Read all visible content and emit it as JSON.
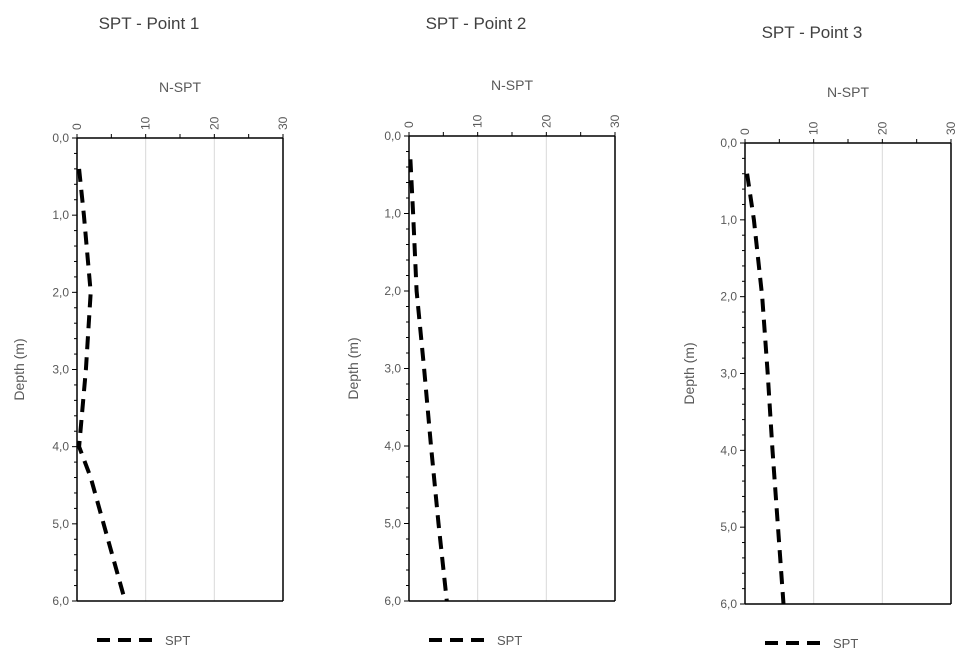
{
  "chart_data": [
    {
      "type": "line",
      "title": "SPT - Point 1",
      "xlabel": "N-SPT",
      "ylabel": "Depth (m)",
      "xlim": [
        0,
        30
      ],
      "ylim": [
        0,
        6
      ],
      "y_inverted": true,
      "x_axis_position": "top",
      "x_ticks": [
        "0",
        "10",
        "20",
        "30"
      ],
      "y_ticks": [
        "0,0",
        "1,0",
        "2,0",
        "3,0",
        "4,0",
        "5,0",
        "6,0"
      ],
      "grid": "vertical",
      "legend": "bottom",
      "series": [
        {
          "name": "SPT",
          "style": "dashed",
          "color": "#000000",
          "points": [
            [
              0.3,
              0.4
            ],
            [
              1.0,
              1.0
            ],
            [
              2.0,
              2.0
            ],
            [
              1.3,
              3.0
            ],
            [
              0.3,
              4.0
            ],
            [
              2.0,
              4.4
            ],
            [
              7.0,
              6.0
            ]
          ]
        }
      ]
    },
    {
      "type": "line",
      "title": "SPT - Point 2",
      "xlabel": "N-SPT",
      "ylabel": "Depth (m)",
      "xlim": [
        0,
        30
      ],
      "ylim": [
        0,
        6
      ],
      "y_inverted": true,
      "x_axis_position": "top",
      "x_ticks": [
        "0",
        "10",
        "20",
        "30"
      ],
      "y_ticks": [
        "0,0",
        "1,0",
        "2,0",
        "3,0",
        "4,0",
        "5,0",
        "6,0"
      ],
      "grid": "vertical",
      "legend": "bottom",
      "series": [
        {
          "name": "SPT",
          "style": "dashed",
          "color": "#000000",
          "points": [
            [
              0.2,
              0.3
            ],
            [
              0.6,
              1.0
            ],
            [
              1.1,
              2.0
            ],
            [
              2.2,
              3.0
            ],
            [
              3.2,
              4.0
            ],
            [
              4.3,
              5.0
            ],
            [
              5.5,
              6.0
            ]
          ]
        }
      ]
    },
    {
      "type": "line",
      "title": "SPT - Point 3",
      "xlabel": "N-SPT",
      "ylabel": "Depth (m)",
      "xlim": [
        0,
        30
      ],
      "ylim": [
        0,
        6
      ],
      "y_inverted": true,
      "x_axis_position": "top",
      "x_ticks": [
        "0",
        "10",
        "20",
        "30"
      ],
      "y_ticks": [
        "0,0",
        "1,0",
        "2,0",
        "3,0",
        "4,0",
        "5,0",
        "6,0"
      ],
      "grid": "vertical",
      "legend": "bottom",
      "series": [
        {
          "name": "SPT",
          "style": "dashed",
          "color": "#000000",
          "points": [
            [
              0.3,
              0.4
            ],
            [
              1.3,
              1.0
            ],
            [
              2.5,
              2.0
            ],
            [
              3.3,
              3.0
            ],
            [
              4.0,
              4.0
            ],
            [
              4.8,
              5.0
            ],
            [
              5.6,
              6.0
            ]
          ]
        }
      ]
    }
  ]
}
